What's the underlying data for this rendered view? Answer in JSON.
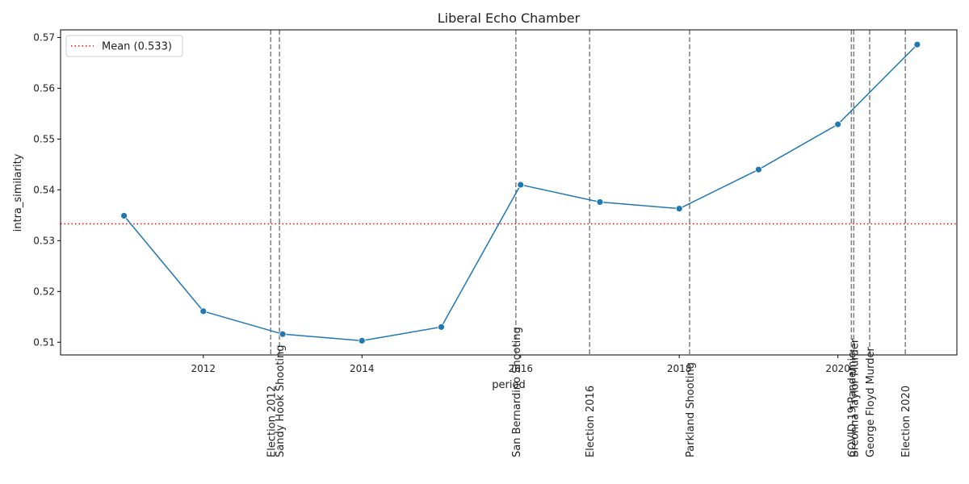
{
  "chart_data": {
    "type": "line",
    "title": "Liberal Echo Chamber",
    "xlabel": "period",
    "ylabel": "intra_similarity",
    "xlim": [
      2010.2,
      2021.5
    ],
    "ylim": [
      0.5075,
      0.5715
    ],
    "x_ticks": [
      {
        "value": 2012,
        "label": "2012"
      },
      {
        "value": 2014,
        "label": "2014"
      },
      {
        "value": 2016,
        "label": "2016"
      },
      {
        "value": 2018,
        "label": "2018"
      },
      {
        "value": 2020,
        "label": "2020"
      }
    ],
    "y_ticks": [
      {
        "value": 0.51,
        "label": "0.51"
      },
      {
        "value": 0.52,
        "label": "0.52"
      },
      {
        "value": 0.53,
        "label": "0.53"
      },
      {
        "value": 0.54,
        "label": "0.54"
      },
      {
        "value": 0.55,
        "label": "0.55"
      },
      {
        "value": 0.56,
        "label": "0.56"
      },
      {
        "value": 0.57,
        "label": "0.57"
      }
    ],
    "series": [
      {
        "color": "#1f77b4",
        "x": [
          2011,
          2012,
          2013,
          2014,
          2015,
          2016,
          2017,
          2018,
          2019,
          2020,
          2021
        ],
        "y": [
          0.5349,
          0.5161,
          0.5116,
          0.5103,
          0.513,
          0.541,
          0.5376,
          0.5363,
          0.544,
          0.5529,
          0.5686
        ]
      }
    ],
    "mean": {
      "value": 0.5333,
      "label": "Mean (0.533)",
      "color": "#ff0000"
    },
    "events": [
      {
        "x": 2012.85,
        "label": "Election 2012"
      },
      {
        "x": 2012.96,
        "label": "Sandy Hook Shooting"
      },
      {
        "x": 2015.94,
        "label": "San Bernardino Shooting"
      },
      {
        "x": 2016.87,
        "label": "Election 2016"
      },
      {
        "x": 2018.13,
        "label": "Parkland Shooting"
      },
      {
        "x": 2020.17,
        "label": "COVID-19 Pandemic"
      },
      {
        "x": 2020.2,
        "label": "Breonna Taylor Murder"
      },
      {
        "x": 2020.4,
        "label": "George Floyd Murder"
      },
      {
        "x": 2020.85,
        "label": "Election 2020"
      }
    ],
    "event_color": "#808080",
    "legend_position": "upper-left",
    "grid": false
  }
}
